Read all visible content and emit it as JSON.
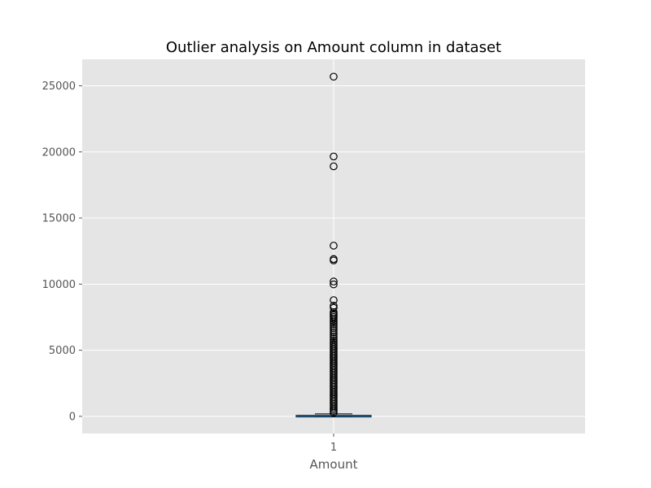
{
  "chart_data": {
    "type": "box",
    "title": "Outlier analysis on Amount column in dataset",
    "xlabel": "Amount",
    "ylabel": "",
    "categories": [
      "1"
    ],
    "ylim": [
      -1300,
      27000
    ],
    "yticks": [
      0,
      5000,
      10000,
      15000,
      20000,
      25000
    ],
    "box": {
      "min": 0,
      "q1": 5.6,
      "median": 22,
      "q3": 77,
      "whisker_high": 184
    },
    "outliers": [
      25691,
      19656,
      18910,
      12910,
      11898,
      11790,
      10199,
      9979,
      8790,
      8360,
      8210,
      7880,
      7760,
      7640,
      7520,
      7390,
      7250,
      7120,
      6980,
      6830,
      6680,
      6520,
      6360,
      6200,
      6050,
      5900,
      5760,
      5620,
      5480,
      5350,
      5220,
      5090,
      4960,
      4830,
      4700,
      4570,
      4440,
      4310,
      4180,
      4050,
      3920,
      3790,
      3660,
      3530,
      3400,
      3270,
      3140,
      3010,
      2880,
      2750,
      2620,
      2490,
      2360,
      2230,
      2100,
      1970,
      1840,
      1710,
      1580,
      1450,
      1320,
      1190,
      1060,
      930,
      800,
      670,
      540,
      410,
      280
    ],
    "grid": true,
    "colors": {
      "axes_bg": "#e5e5e5",
      "grid": "#ffffff",
      "box": "#000000",
      "median": "#1f77b4",
      "text": "#555555"
    }
  }
}
